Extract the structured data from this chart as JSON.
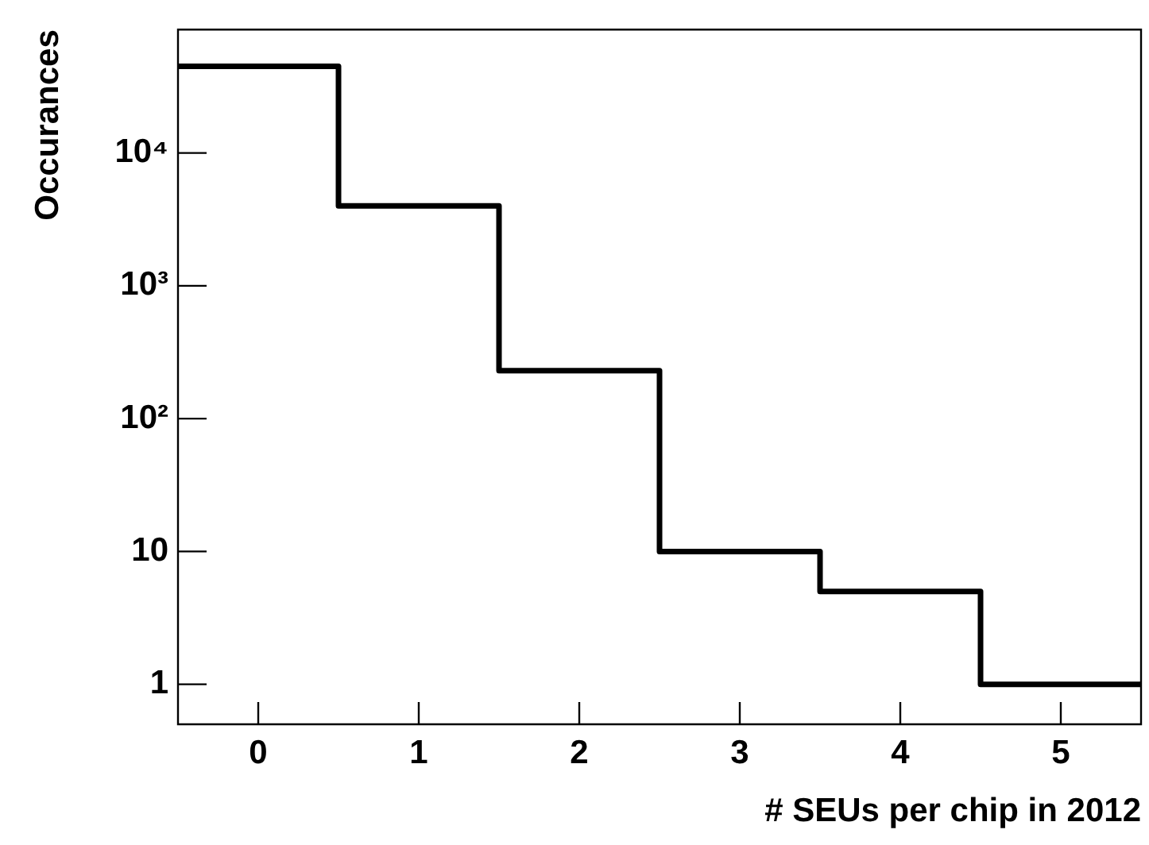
{
  "chart_data": {
    "type": "histogram",
    "xlabel": "# SEUs per chip in 2012",
    "ylabel": "Occurances",
    "bins": [
      -0.5,
      0.5,
      1.5,
      2.5,
      3.5,
      4.5,
      5.5
    ],
    "values": [
      45000,
      4000,
      230,
      10,
      5,
      1
    ],
    "color": "#000000",
    "xlim": [
      -0.5,
      5.5
    ],
    "xticks": [
      0,
      1,
      2,
      3,
      4,
      5
    ],
    "ylim": [
      0.5,
      85000
    ],
    "yticks": [
      1,
      10,
      {
        "value": 100,
        "label": "10²"
      },
      {
        "value": 1000,
        "label": "10³"
      },
      {
        "value": 10000,
        "label": "10⁴"
      }
    ],
    "log": "y",
    "grid": false,
    "legend": false
  }
}
